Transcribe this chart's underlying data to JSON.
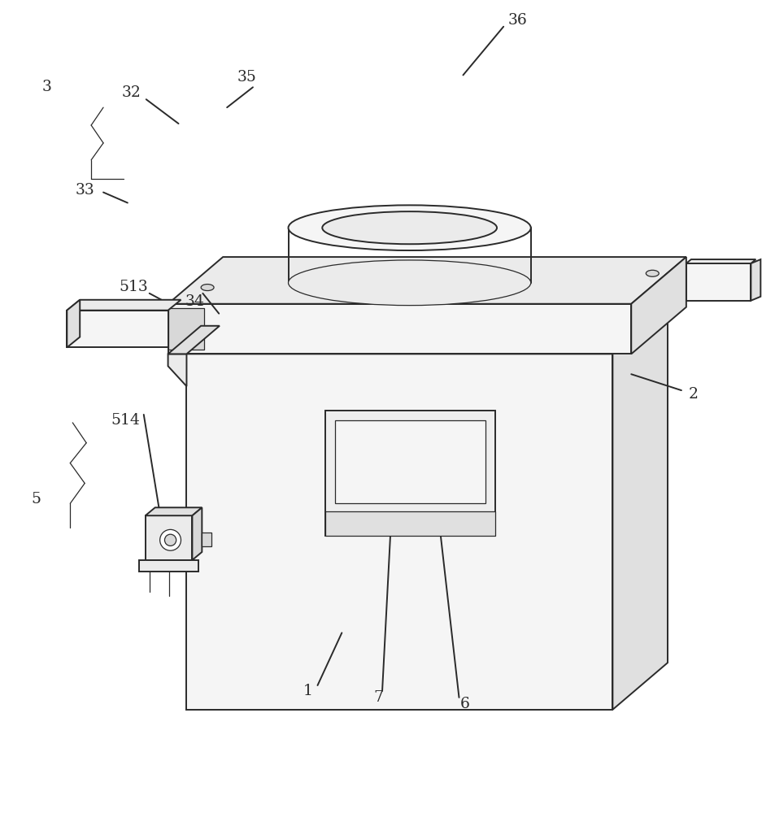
{
  "bg_color": "#ffffff",
  "line_color": "#2a2a2a",
  "line_width": 1.4,
  "thin_line": 0.9,
  "label_fontsize": 13.5,
  "face_light": "#f5f5f5",
  "face_mid": "#ebebeb",
  "face_dark": "#e0e0e0",
  "face_darker": "#d8d8d8"
}
